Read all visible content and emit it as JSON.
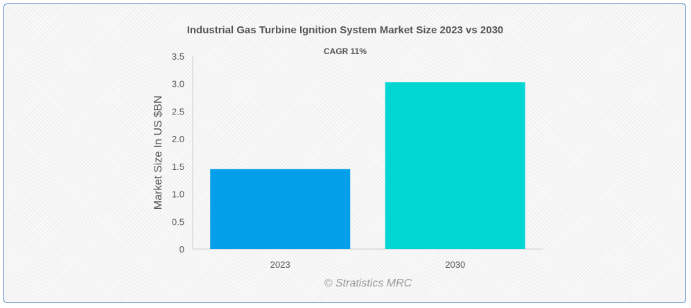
{
  "chart_data": {
    "type": "bar",
    "title": "Industrial Gas Turbine Ignition System Market Size 2023 vs 2030",
    "subtitle": "CAGR 11%",
    "xlabel": "",
    "ylabel": "Market Size In US $BN",
    "categories": [
      "2023",
      "2030"
    ],
    "values": [
      1.45,
      3.03
    ],
    "colors": [
      "#049fea",
      "#03d5d3"
    ],
    "ylim": [
      0,
      3.5
    ],
    "yticks": [
      "0",
      "0.5",
      "1.0",
      "1.5",
      "2.0",
      "2.5",
      "3.0",
      "3.5"
    ],
    "grid": false,
    "legend": "none"
  },
  "footer": {
    "credit": "© Stratistics MRC"
  }
}
